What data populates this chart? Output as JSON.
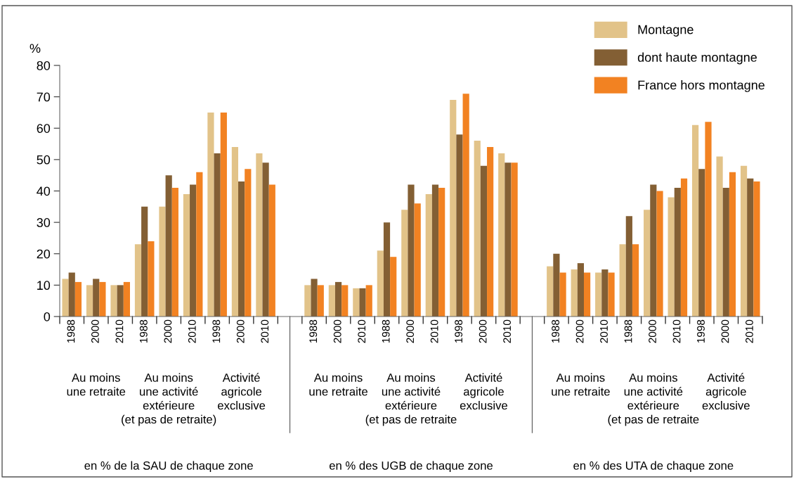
{
  "chart_data": {
    "type": "bar",
    "ylabel": "%",
    "categories": [
      "1988",
      "2000",
      "2010",
      "1988",
      "2000",
      "2010",
      "1998",
      "2000",
      "2010",
      null,
      "1988",
      "2000",
      "2010",
      "1988",
      "2000",
      "2010",
      "1998",
      "2000",
      "2010",
      null,
      "1988",
      "2000",
      "2010",
      "1988",
      "2000",
      "2010",
      "1998",
      "2000",
      "2010"
    ],
    "series": [
      {
        "name": "Montagne",
        "color": "#e2c389",
        "values": [
          12,
          10,
          10,
          23,
          35,
          39,
          65,
          54,
          52,
          null,
          10,
          10,
          9,
          21,
          34,
          39,
          69,
          56,
          52,
          null,
          16,
          15,
          14,
          23,
          34,
          38,
          61,
          51,
          48
        ]
      },
      {
        "name": "dont haute montagne",
        "color": "#835f34",
        "values": [
          14,
          12,
          10,
          35,
          45,
          42,
          52,
          43,
          49,
          null,
          12,
          11,
          9,
          30,
          42,
          42,
          58,
          48,
          49,
          null,
          20,
          17,
          15,
          32,
          42,
          41,
          47,
          41,
          44
        ]
      },
      {
        "name": "France hors montagne",
        "color": "#f28222",
        "values": [
          11,
          11,
          11,
          24,
          41,
          46,
          65,
          47,
          42,
          null,
          10,
          10,
          10,
          19,
          36,
          41,
          71,
          54,
          49,
          null,
          14,
          14,
          14,
          23,
          40,
          44,
          62,
          46,
          43
        ]
      }
    ],
    "ylim": [
      0,
      80
    ],
    "yticks": [
      0,
      10,
      20,
      30,
      40,
      50,
      60,
      70,
      80
    ],
    "grid": false,
    "legend": "top right",
    "annotations": [
      "Au moins\nune retraite",
      "Au moins\nune activité\nextérieure\n(et pas de retraite)",
      "Activité\nagricole\nexclusive",
      "Au moins\nune retraite",
      "Au moins\nune activité\nextérieure\n(et pas de retraite",
      "Activité\nagricole\nexclusive",
      "Au moins\nune retraite",
      "Au moins\nune activité\nextérieure\n(et pas de retraite",
      "Activité\nagricole\nexclusive",
      "en % de la SAU de chaque zone",
      "en % des UGB de chaque zone",
      "en % des UTA de chaque zone"
    ]
  }
}
